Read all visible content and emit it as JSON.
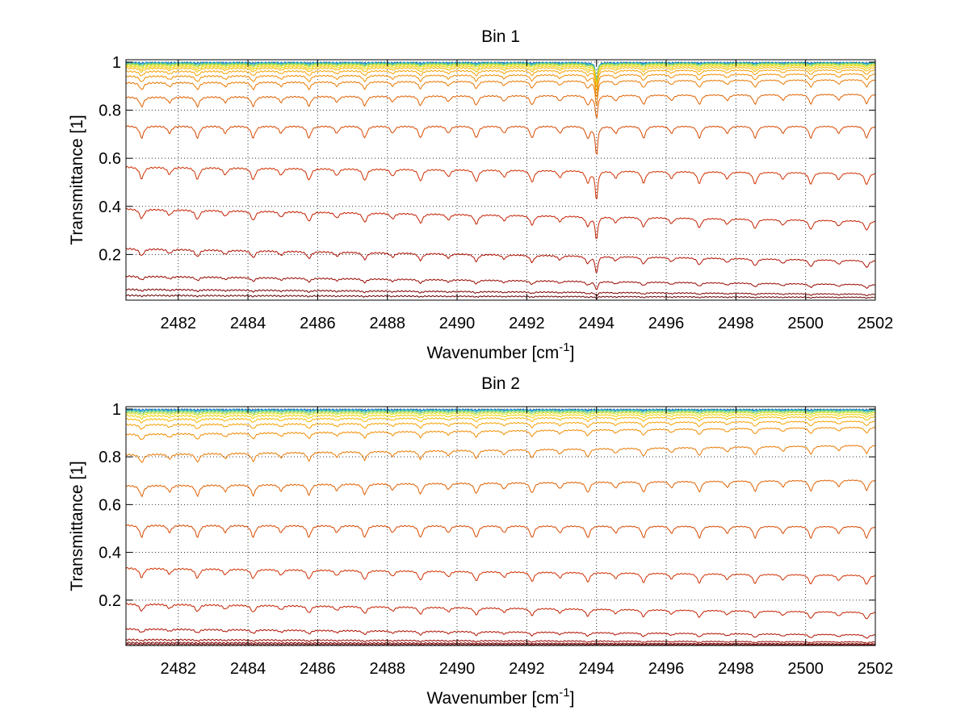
{
  "chart_data": [
    {
      "type": "line",
      "title": "Bin 1",
      "xlabel": "Wavenumber [cm",
      "xlabel_sup": "-1",
      "xlabel_end": "]",
      "ylabel": "Transmittance [1]",
      "xlim": [
        2480.5,
        2502
      ],
      "ylim": [
        0.01,
        1.01
      ],
      "xticks": [
        2482,
        2484,
        2486,
        2488,
        2490,
        2492,
        2494,
        2496,
        2498,
        2500,
        2502
      ],
      "yticks": [
        0.2,
        0.4,
        0.6,
        0.8,
        1
      ],
      "ytick_labels": [
        "0.2",
        "0.4",
        "0.6",
        "0.8",
        "1"
      ],
      "grid": true,
      "line_spacing_cm1": 0.8,
      "strong_line_at": 2494,
      "series": [
        {
          "start": 0.998,
          "end": 0.998,
          "depth": 0.002,
          "color": "#0a64d8"
        },
        {
          "start": 0.997,
          "end": 0.997,
          "depth": 0.004,
          "color": "#1aa0c8"
        },
        {
          "start": 0.995,
          "end": 0.996,
          "depth": 0.006,
          "color": "#40c0a0"
        },
        {
          "start": 0.992,
          "end": 0.994,
          "depth": 0.008,
          "color": "#8ad050"
        },
        {
          "start": 0.988,
          "end": 0.99,
          "depth": 0.01,
          "color": "#d8e020"
        },
        {
          "start": 0.982,
          "end": 0.985,
          "depth": 0.013,
          "color": "#f0d000"
        },
        {
          "start": 0.975,
          "end": 0.978,
          "depth": 0.016,
          "color": "#f5b800"
        },
        {
          "start": 0.962,
          "end": 0.968,
          "depth": 0.02,
          "color": "#f5a000"
        },
        {
          "start": 0.942,
          "end": 0.952,
          "depth": 0.025,
          "color": "#f08c00"
        },
        {
          "start": 0.915,
          "end": 0.928,
          "depth": 0.03,
          "color": "#e87800"
        },
        {
          "start": 0.855,
          "end": 0.868,
          "depth": 0.04,
          "color": "#e06000"
        },
        {
          "start": 0.735,
          "end": 0.735,
          "depth": 0.05,
          "color": "#d84800"
        },
        {
          "start": 0.565,
          "end": 0.54,
          "depth": 0.05,
          "color": "#d03000"
        },
        {
          "start": 0.39,
          "end": 0.34,
          "depth": 0.04,
          "color": "#c42000"
        },
        {
          "start": 0.225,
          "end": 0.175,
          "depth": 0.03,
          "color": "#b01000"
        },
        {
          "start": 0.11,
          "end": 0.075,
          "depth": 0.015,
          "color": "#980800"
        },
        {
          "start": 0.055,
          "end": 0.035,
          "depth": 0.006,
          "color": "#800000"
        },
        {
          "start": 0.03,
          "end": 0.022,
          "depth": 0.003,
          "color": "#680000"
        }
      ]
    },
    {
      "type": "line",
      "title": "Bin 2",
      "xlabel": "Wavenumber [cm",
      "xlabel_sup": "-1",
      "xlabel_end": "]",
      "ylabel": "Transmittance [1]",
      "xlim": [
        2480.5,
        2502
      ],
      "ylim": [
        0.01,
        1.01
      ],
      "xticks": [
        2482,
        2484,
        2486,
        2488,
        2490,
        2492,
        2494,
        2496,
        2498,
        2500,
        2502
      ],
      "yticks": [
        0.2,
        0.4,
        0.6,
        0.8,
        1
      ],
      "ytick_labels": [
        "0.2",
        "0.4",
        "0.6",
        "0.8",
        "1"
      ],
      "grid": true,
      "line_spacing_cm1": 0.8,
      "strong_line_at": null,
      "series": [
        {
          "start": 0.998,
          "end": 0.998,
          "depth": 0.002,
          "color": "#0a64d8"
        },
        {
          "start": 0.996,
          "end": 0.997,
          "depth": 0.004,
          "color": "#1aa0c8"
        },
        {
          "start": 0.993,
          "end": 0.995,
          "depth": 0.006,
          "color": "#40c0a0"
        },
        {
          "start": 0.988,
          "end": 0.991,
          "depth": 0.008,
          "color": "#8ad050"
        },
        {
          "start": 0.982,
          "end": 0.986,
          "depth": 0.01,
          "color": "#d8e020"
        },
        {
          "start": 0.972,
          "end": 0.978,
          "depth": 0.012,
          "color": "#f0d000"
        },
        {
          "start": 0.958,
          "end": 0.968,
          "depth": 0.015,
          "color": "#f5b800"
        },
        {
          "start": 0.935,
          "end": 0.95,
          "depth": 0.02,
          "color": "#f5a000"
        },
        {
          "start": 0.895,
          "end": 0.925,
          "depth": 0.025,
          "color": "#f08c00"
        },
        {
          "start": 0.81,
          "end": 0.85,
          "depth": 0.035,
          "color": "#e87800"
        },
        {
          "start": 0.68,
          "end": 0.705,
          "depth": 0.045,
          "color": "#e06000"
        },
        {
          "start": 0.515,
          "end": 0.51,
          "depth": 0.05,
          "color": "#d84800"
        },
        {
          "start": 0.335,
          "end": 0.305,
          "depth": 0.04,
          "color": "#d03000"
        },
        {
          "start": 0.185,
          "end": 0.15,
          "depth": 0.03,
          "color": "#c42000"
        },
        {
          "start": 0.08,
          "end": 0.055,
          "depth": 0.015,
          "color": "#b01000"
        },
        {
          "start": 0.035,
          "end": 0.025,
          "depth": 0.005,
          "color": "#980800"
        },
        {
          "start": 0.022,
          "end": 0.017,
          "depth": 0.002,
          "color": "#800000"
        },
        {
          "start": 0.015,
          "end": 0.013,
          "depth": 0.001,
          "color": "#680000"
        }
      ]
    }
  ]
}
